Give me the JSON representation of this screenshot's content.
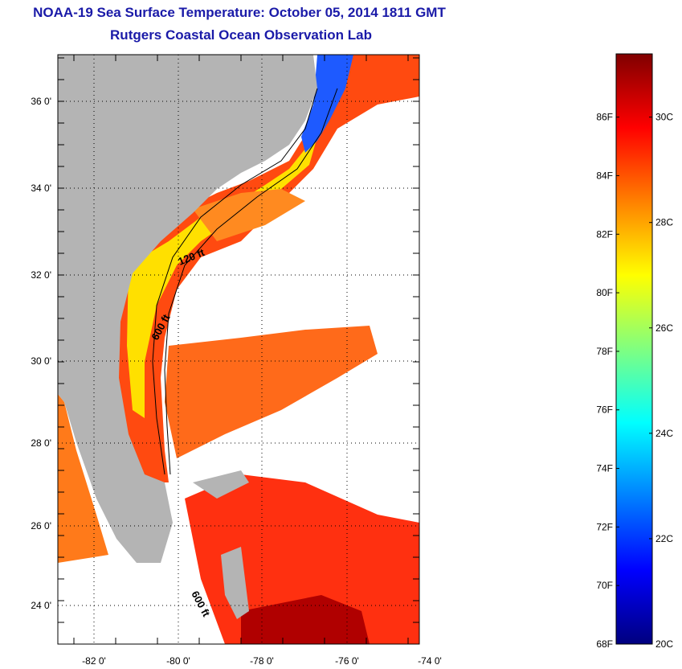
{
  "title": "NOAA-19 Sea Surface Temperature:  October 05, 2014 1811 GMT",
  "subtitle": "Rutgers Coastal Ocean Observation Lab",
  "map": {
    "lat_labels": [
      "36 0'",
      "34 0'",
      "32 0'",
      "30 0'",
      "28 0'",
      "26 0'",
      "24 0'"
    ],
    "lon_labels": [
      "-82 0'",
      "-80 0'",
      "-78 0'",
      "-76 0'",
      "-74 0'"
    ],
    "contour_labels": [
      "120 ft",
      "600 ft",
      "600 ft"
    ],
    "colors": {
      "land": "#b4b4b4",
      "grid": "#000000"
    }
  },
  "colorbar": {
    "fahrenheit_labels": [
      "86F",
      "84F",
      "82F",
      "80F",
      "78F",
      "76F",
      "74F",
      "72F",
      "70F",
      "68F"
    ],
    "celsius_labels": [
      "30C",
      "28C",
      "26C",
      "24C",
      "22C",
      "20C"
    ],
    "range_c": [
      20,
      31.2
    ],
    "stops": [
      "#00007f",
      "#0000ff",
      "#0080ff",
      "#00ffff",
      "#80ff80",
      "#ffff00",
      "#ff8000",
      "#ff0000",
      "#800000"
    ]
  }
}
